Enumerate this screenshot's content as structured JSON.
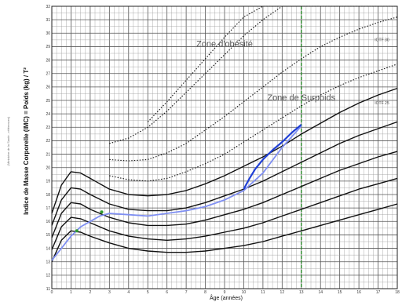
{
  "chart_data": {
    "type": "line",
    "xlabel": "Âge (années)",
    "ylabel": "Indice de Masse Corporelle (IMC) = Poids (kg) / T²",
    "ylabel_secondary": "(Ministère de la Santé - références)",
    "xlim": [
      0,
      18
    ],
    "ylim": [
      11,
      32
    ],
    "x_ticks": [
      0,
      1,
      2,
      3,
      4,
      5,
      6,
      7,
      8,
      9,
      10,
      11,
      12,
      13,
      14,
      15,
      16,
      17,
      18
    ],
    "y_ticks": [
      11,
      12,
      13,
      14,
      15,
      16,
      17,
      18,
      19,
      20,
      21,
      22,
      23,
      24,
      25,
      26,
      27,
      28,
      29,
      30,
      31,
      32
    ],
    "grid": true,
    "annotations": [
      {
        "text": "Zone d'obésité",
        "x": 9.0,
        "y": 29.0
      },
      {
        "text": "Zone de Surpoids",
        "x": 13.0,
        "y": 25.0
      }
    ],
    "curve_labels": [
      {
        "text": "IOTF 30",
        "x": 17.2,
        "y": 29.4
      },
      {
        "text": "IOTF 25",
        "x": 17.2,
        "y": 24.7
      }
    ],
    "reference_line": {
      "x": 13,
      "color": "#2a8a2a",
      "style": "dashed"
    },
    "percentile_curves": [
      {
        "style": "solid",
        "x": [
          0,
          0.5,
          1,
          1.5,
          2,
          3,
          4,
          5,
          6,
          7,
          8,
          9,
          10,
          11,
          12,
          13,
          14,
          15,
          16,
          17,
          18
        ],
        "y": [
          13.0,
          14.6,
          15.3,
          15.2,
          14.9,
          14.4,
          14.0,
          13.8,
          13.7,
          13.7,
          13.8,
          14.0,
          14.2,
          14.5,
          14.9,
          15.3,
          15.7,
          16.1,
          16.5,
          16.9,
          17.3
        ]
      },
      {
        "style": "solid",
        "x": [
          0,
          0.5,
          1,
          1.5,
          2,
          3,
          4,
          5,
          6,
          7,
          8,
          9,
          10,
          11,
          12,
          13,
          14,
          15,
          16,
          17,
          18
        ],
        "y": [
          13.9,
          15.6,
          16.3,
          16.2,
          15.9,
          15.3,
          14.9,
          14.7,
          14.6,
          14.7,
          14.9,
          15.2,
          15.5,
          15.9,
          16.4,
          16.9,
          17.4,
          17.9,
          18.4,
          18.8,
          19.2
        ]
      },
      {
        "style": "solid",
        "x": [
          0,
          0.5,
          1,
          1.5,
          2,
          3,
          4,
          5,
          6,
          7,
          8,
          9,
          10,
          11,
          12,
          13,
          14,
          15,
          16,
          17,
          18
        ],
        "y": [
          14.8,
          16.6,
          17.4,
          17.3,
          16.9,
          16.3,
          15.9,
          15.7,
          15.7,
          15.8,
          16.1,
          16.5,
          16.9,
          17.4,
          18.0,
          18.6,
          19.2,
          19.8,
          20.3,
          20.8,
          21.2
        ]
      },
      {
        "style": "solid",
        "x": [
          0,
          0.5,
          1,
          1.5,
          2,
          3,
          4,
          5,
          6,
          7,
          8,
          9,
          10,
          11,
          12,
          13,
          14,
          15,
          16,
          17,
          18
        ],
        "y": [
          15.7,
          17.6,
          18.5,
          18.4,
          18.0,
          17.3,
          16.9,
          16.8,
          16.8,
          17.0,
          17.4,
          17.9,
          18.4,
          19.0,
          19.7,
          20.4,
          21.1,
          21.8,
          22.4,
          22.9,
          23.4
        ]
      },
      {
        "style": "solid",
        "x": [
          0,
          0.5,
          1,
          1.5,
          2,
          3,
          4,
          5,
          6,
          7,
          8,
          9,
          10,
          11,
          12,
          13,
          14,
          15,
          16,
          17,
          18
        ],
        "y": [
          16.6,
          18.7,
          19.7,
          19.6,
          19.2,
          18.4,
          18.0,
          17.9,
          18.0,
          18.3,
          18.8,
          19.4,
          20.1,
          20.8,
          21.6,
          22.5,
          23.3,
          24.1,
          24.8,
          25.4,
          25.9
        ]
      },
      {
        "style": "dotted",
        "x": [
          3,
          4,
          5,
          6,
          7,
          8,
          9,
          10,
          11,
          12,
          13,
          14,
          15,
          16,
          17,
          18
        ],
        "y": [
          19.4,
          19.1,
          19.0,
          19.2,
          19.7,
          20.3,
          21.0,
          21.9,
          22.8,
          23.7,
          24.6,
          25.4,
          26.1,
          26.7,
          27.2,
          27.7
        ]
      },
      {
        "style": "dotted",
        "x": [
          3,
          4,
          5,
          6,
          7,
          8,
          9,
          10,
          11,
          12,
          13,
          14,
          15,
          16,
          17,
          18
        ],
        "y": [
          20.6,
          20.5,
          20.6,
          21.1,
          21.8,
          22.8,
          23.8,
          24.9,
          26.0,
          27.1,
          28.1,
          29.0,
          29.7,
          30.3,
          30.8,
          31.2
        ]
      },
      {
        "style": "dotted",
        "x": [
          3,
          4,
          5,
          6,
          7,
          8,
          9,
          10,
          11,
          12,
          13,
          14,
          15,
          16,
          17,
          18
        ],
        "y": [
          21.8,
          22.2,
          23.0,
          24.2,
          25.6,
          27.0,
          28.4,
          29.8,
          31.0,
          32.0,
          32.0,
          32.0,
          32.0,
          32.0,
          32.0,
          32.0
        ]
      },
      {
        "style": "dotted",
        "x": [
          5,
          6,
          7,
          8,
          9,
          10,
          11,
          12,
          13
        ],
        "y": [
          23.4,
          24.9,
          26.5,
          28.1,
          29.7,
          31.2,
          32.0,
          32.0,
          32.0
        ]
      }
    ],
    "series": [
      {
        "name": "",
        "color": "#7f8ff2",
        "x": [
          0,
          0.5,
          1,
          1.5,
          2,
          2.5,
          3,
          4,
          5,
          6,
          7,
          8,
          9,
          10,
          11,
          12,
          13
        ],
        "y": [
          13.1,
          14.0,
          14.9,
          15.6,
          16.0,
          16.4,
          16.6,
          16.5,
          16.4,
          16.6,
          16.8,
          17.1,
          17.6,
          18.3,
          19.6,
          21.5,
          23.1
        ]
      },
      {
        "name": "",
        "color": "#1f3fd6",
        "x": [
          10,
          10.3,
          10.6,
          11,
          11.5,
          12,
          12.5,
          13
        ],
        "y": [
          18.4,
          19.2,
          19.9,
          20.6,
          21.3,
          21.9,
          22.6,
          23.2
        ]
      }
    ],
    "points": [
      {
        "x": 2.6,
        "y": 16.7,
        "color": "#2e9b2e"
      },
      {
        "x": 1.3,
        "y": 15.3,
        "color": "#2e9b2e"
      }
    ]
  }
}
